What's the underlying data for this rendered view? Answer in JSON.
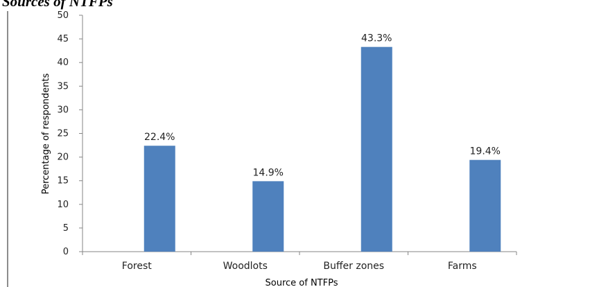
{
  "page": {
    "heading": "Sources of NTFPs"
  },
  "chart_data": {
    "type": "bar",
    "title": "",
    "xlabel": "Source of NTFPs",
    "ylabel": "Percentage of respondents",
    "categories": [
      "Forest",
      "Woodlots",
      "Buffer zones",
      "Farms"
    ],
    "values": [
      22.4,
      14.9,
      43.3,
      19.4
    ],
    "data_labels": [
      "22.4%",
      "14.9%",
      "43.3%",
      "19.4%"
    ],
    "ylim": [
      0,
      50
    ],
    "y_ticks": [
      0,
      5,
      10,
      15,
      20,
      25,
      30,
      35,
      40,
      45,
      50
    ],
    "grid": false,
    "legend": "none",
    "bar_color": "#4f81bd",
    "axis_color": "#868686"
  }
}
